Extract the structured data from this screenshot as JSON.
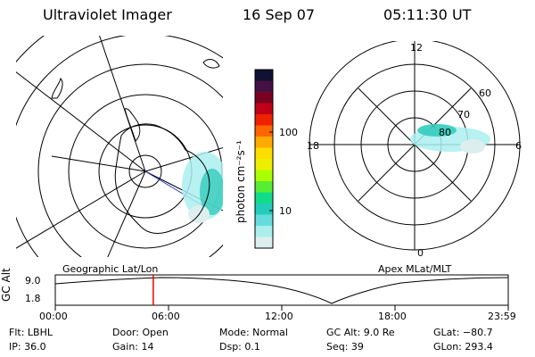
{
  "header": {
    "instrument": "Ultraviolet Imager",
    "date": "16 Sep 07",
    "time": "05:11:30 UT"
  },
  "colorbar": {
    "unit_label": "photon cm⁻²s⁻¹",
    "ticks": [
      "100",
      "10"
    ],
    "colors": [
      "#111133",
      "#441144",
      "#7a0022",
      "#c00018",
      "#ee2200",
      "#ff6600",
      "#ffaa00",
      "#ffdd00",
      "#eeee00",
      "#aaff00",
      "#55ee33",
      "#11dd88",
      "#22ccbb",
      "#66dddd",
      "#aaeeee",
      "#ddeeee"
    ]
  },
  "left_map": {
    "caption": "Geographic Lat/Lon"
  },
  "right_map": {
    "caption": "Apex MLat/MLT",
    "mlt_labels": {
      "top": "12",
      "left": "18",
      "right": "6",
      "bottom": "0"
    },
    "lat_labels": [
      "60",
      "70",
      "80"
    ]
  },
  "altitude_plot": {
    "ylabel": "GC Alt",
    "yticks": [
      "9.0",
      "1.8"
    ],
    "xticks": [
      "00:00",
      "06:00",
      "12:00",
      "18:00",
      "23:59"
    ],
    "marker_time": "05:11:30"
  },
  "info": {
    "flt": "Flt: LBHL",
    "ip": "IP: 36.0",
    "door": "Door: Open",
    "gain": "Gain: 14",
    "mode": "Mode: Normal",
    "dsp": "Dsp:      0.1",
    "gcalt": "GC Alt: 9.0 Re",
    "seq": "Seq: 39",
    "glat": "GLat: −80.7",
    "glon": "GLon: 293.4"
  }
}
